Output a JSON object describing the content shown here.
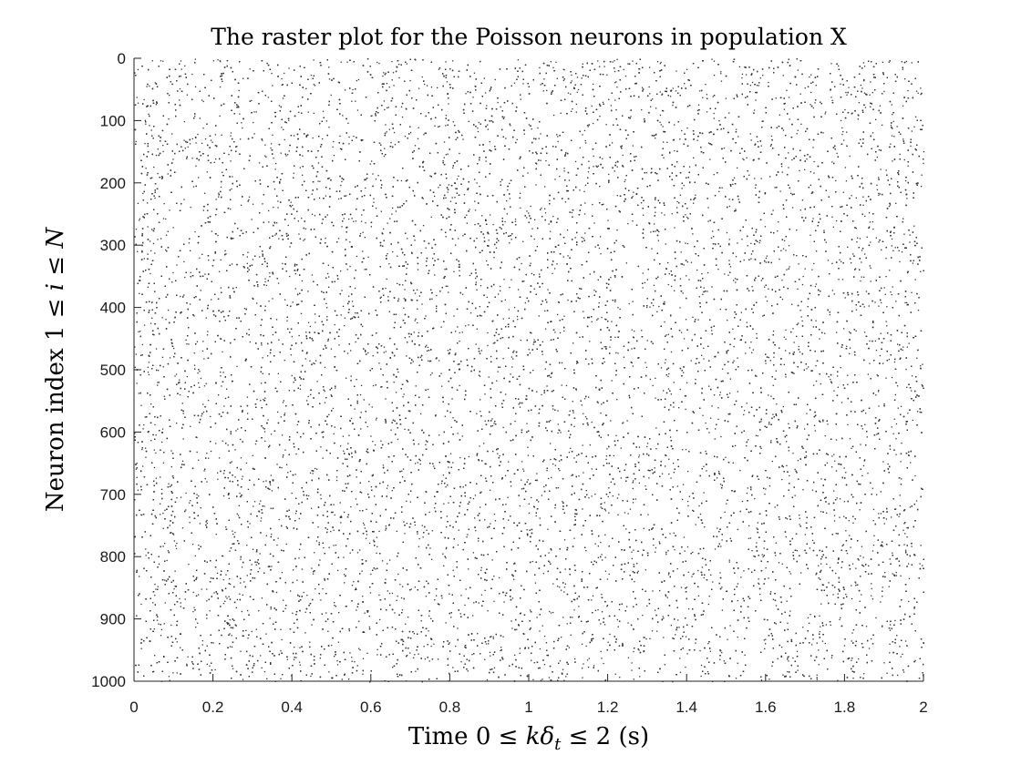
{
  "chart_data": {
    "type": "scatter",
    "title": "The raster plot for the Poisson neurons in population X",
    "xlabel": "Time 0 ≤ kδt ≤ 2 (s)",
    "ylabel": "Neuron index 1 ≤ i ≤ N",
    "xlim": [
      0,
      2
    ],
    "ylim": [
      0,
      1000
    ],
    "y_reversed": true,
    "x_ticks": [
      0,
      0.2,
      0.4,
      0.6,
      0.8,
      1,
      1.2,
      1.4,
      1.6,
      1.8,
      2
    ],
    "x_tick_labels": [
      "0",
      "0.2",
      "0.4",
      "0.6",
      "0.8",
      "1",
      "1.2",
      "1.4",
      "1.6",
      "1.8",
      "2"
    ],
    "y_ticks": [
      0,
      100,
      200,
      300,
      400,
      500,
      600,
      700,
      800,
      900,
      1000
    ],
    "y_tick_labels": [
      "0",
      "100",
      "200",
      "300",
      "400",
      "500",
      "600",
      "700",
      "800",
      "900",
      "1000"
    ],
    "grid": false,
    "legend": "none",
    "series": [
      {
        "marker": "dot",
        "color": "#333333",
        "num_neurons": 1000,
        "duration_s": 2,
        "spike_density": "uniform (Poisson)"
      }
    ]
  }
}
